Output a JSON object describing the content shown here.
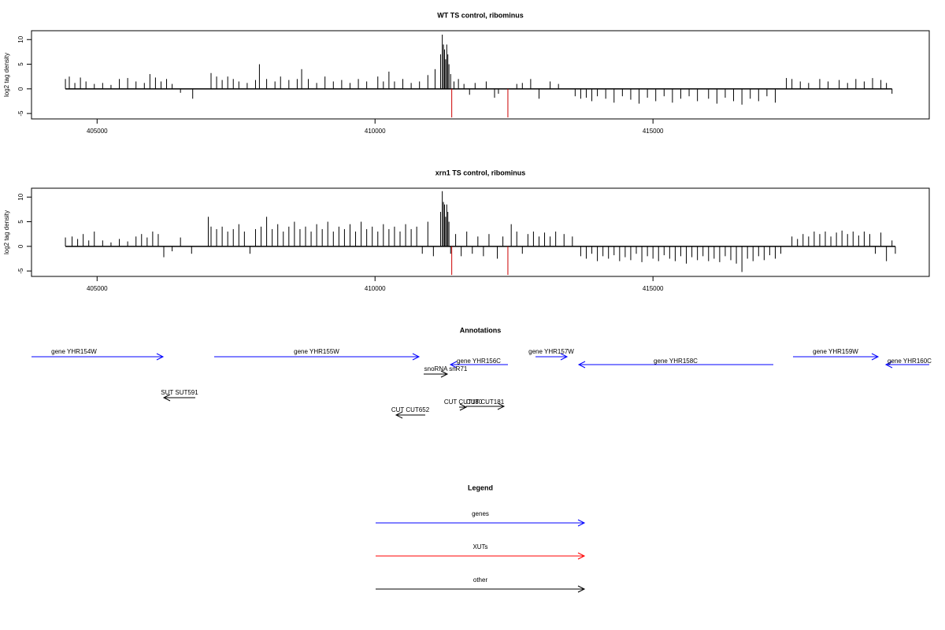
{
  "chart_data": [
    {
      "type": "bar",
      "title": "WT TS control, ribominus",
      "y_label": "log2 tag density",
      "xlim": [
        403820,
        419970
      ],
      "ylim": [
        -6.1,
        11.8
      ],
      "xticks": [
        405000,
        410000,
        415000
      ],
      "yticks": [
        -5,
        0,
        5,
        10
      ],
      "color": "#000000",
      "x": [
        404430,
        404500,
        404600,
        404700,
        404800,
        404950,
        405100,
        405250,
        405400,
        405550,
        405700,
        405850,
        405950,
        406050,
        406150,
        406250,
        406350,
        406500,
        406720,
        407050,
        407150,
        407250,
        407350,
        407450,
        407550,
        407700,
        407850,
        407920,
        408050,
        408200,
        408300,
        408450,
        408600,
        408680,
        408800,
        408950,
        409100,
        409250,
        409400,
        409550,
        409700,
        409850,
        410050,
        410150,
        410250,
        410350,
        410500,
        410650,
        410800,
        410950,
        411080,
        411180,
        411210,
        411230,
        411250,
        411270,
        411290,
        411310,
        411330,
        411360,
        411420,
        411500,
        411600,
        411700,
        411800,
        412000,
        412150,
        412220,
        412550,
        412650,
        412800,
        412950,
        413150,
        413300,
        413600,
        413700,
        413800,
        413900,
        414000,
        414150,
        414300,
        414450,
        414600,
        414750,
        414900,
        415050,
        415200,
        415350,
        415500,
        415650,
        415800,
        416000,
        416150,
        416300,
        416450,
        416600,
        416750,
        416900,
        417050,
        417200,
        417400,
        417500,
        417650,
        417800,
        418000,
        418150,
        418350,
        418500,
        418650,
        418800,
        418950,
        419100,
        419200,
        419300
      ],
      "values": [
        2,
        2.5,
        1.2,
        2.3,
        1.5,
        1,
        1.2,
        0.8,
        2,
        2.2,
        1.5,
        1.2,
        3,
        2.3,
        1.5,
        2,
        1,
        -0.8,
        -2,
        3.2,
        2.5,
        1.8,
        2.5,
        2,
        1.5,
        1.2,
        1.8,
        5,
        2,
        1.5,
        2.5,
        1.8,
        2,
        4,
        2,
        1.2,
        2.5,
        1.5,
        1.8,
        1.2,
        2,
        1.5,
        2.5,
        1.5,
        3.5,
        1.5,
        2,
        1.2,
        1.5,
        2.8,
        4,
        7,
        11,
        9,
        8,
        6,
        9,
        7,
        5,
        3,
        1.5,
        2,
        1,
        -1.2,
        1.2,
        1.5,
        -1.8,
        -1,
        1,
        1.2,
        2,
        -2,
        1.5,
        1,
        -1.5,
        -2,
        -1.8,
        -2.5,
        -1.5,
        -2,
        -2.8,
        -1.5,
        -2.2,
        -3,
        -1.8,
        -2.5,
        -1.5,
        -2.8,
        -2,
        -1.5,
        -2.5,
        -2,
        -3,
        -1.8,
        -2.5,
        -3.2,
        -2,
        -2.5,
        -1.5,
        -2.8,
        2.2,
        2,
        1.5,
        1.2,
        2,
        1.5,
        1.8,
        1.2,
        2,
        1.5,
        2.2,
        1.8,
        1.2,
        -1
      ],
      "highlight": {
        "color": "#cc0000",
        "x": [
          411380,
          412390
        ],
        "values": [
          -5.8,
          -5.8
        ]
      }
    },
    {
      "type": "bar",
      "title": "xrn1 TS control, ribominus",
      "y_label": "log2 tag density",
      "xlim": [
        403820,
        419970
      ],
      "ylim": [
        -6.1,
        11.8
      ],
      "xticks": [
        405000,
        410000,
        415000
      ],
      "yticks": [
        -5,
        0,
        5,
        10
      ],
      "color": "#000000",
      "x": [
        404430,
        404550,
        404650,
        404750,
        404850,
        404950,
        405100,
        405250,
        405400,
        405550,
        405700,
        405800,
        405900,
        406000,
        406100,
        406200,
        406350,
        406500,
        406700,
        407000,
        407050,
        407150,
        407250,
        407350,
        407450,
        407550,
        407650,
        407750,
        407850,
        407950,
        408050,
        408150,
        408250,
        408350,
        408450,
        408550,
        408650,
        408750,
        408850,
        408950,
        409050,
        409150,
        409250,
        409350,
        409450,
        409550,
        409650,
        409750,
        409850,
        409950,
        410050,
        410150,
        410250,
        410350,
        410450,
        410550,
        410650,
        410750,
        410850,
        410950,
        411050,
        411180,
        411210,
        411230,
        411250,
        411270,
        411290,
        411310,
        411330,
        411360,
        411450,
        411550,
        411650,
        411750,
        411850,
        411950,
        412050,
        412200,
        412300,
        412450,
        412550,
        412650,
        412750,
        412850,
        412950,
        413050,
        413150,
        413250,
        413400,
        413550,
        413700,
        413800,
        413900,
        414000,
        414100,
        414200,
        414300,
        414400,
        414500,
        414600,
        414700,
        414800,
        414900,
        415000,
        415100,
        415200,
        415300,
        415400,
        415500,
        415600,
        415700,
        415800,
        415900,
        416000,
        416100,
        416200,
        416300,
        416400,
        416500,
        416600,
        416700,
        416800,
        416900,
        417000,
        417100,
        417200,
        417300,
        417500,
        417600,
        417700,
        417800,
        417900,
        418000,
        418100,
        418200,
        418300,
        418400,
        418500,
        418600,
        418700,
        418800,
        418900,
        419000,
        419100,
        419200,
        419300,
        419360
      ],
      "values": [
        1.8,
        2,
        1.5,
        2.5,
        1.2,
        3,
        1.2,
        0.8,
        1.5,
        1,
        2,
        2.5,
        1.8,
        3,
        2.5,
        -2.2,
        -1,
        1.8,
        -1.5,
        6,
        4,
        3.5,
        4,
        3,
        3.5,
        4.5,
        3,
        -1.5,
        3.5,
        4,
        6,
        3.5,
        4.5,
        3,
        4,
        5,
        3.5,
        4,
        3,
        4.5,
        3.5,
        5,
        3,
        4,
        3.5,
        4.5,
        3,
        5,
        3.5,
        4,
        3,
        4.5,
        3.5,
        4,
        3,
        4.5,
        3.5,
        4,
        -1.5,
        5,
        -2,
        7,
        11.2,
        9,
        8.5,
        6,
        8.5,
        7,
        5,
        -1.5,
        2.5,
        -2,
        3,
        -1.5,
        2,
        -2,
        2.5,
        -2.5,
        2,
        4.5,
        3,
        -1.5,
        2.5,
        3,
        2,
        2.8,
        2,
        3,
        2.5,
        2,
        -2,
        -2.5,
        -1.5,
        -3,
        -2,
        -2.5,
        -1.8,
        -3,
        -2.2,
        -2.8,
        -1.5,
        -3.2,
        -2,
        -2.5,
        -3,
        -1.8,
        -2.5,
        -3,
        -2,
        -3.5,
        -2.2,
        -2.8,
        -2,
        -3,
        -2.5,
        -3.2,
        -2,
        -2.8,
        -3.5,
        -5.2,
        -2.5,
        -3,
        -2,
        -2.8,
        -1.8,
        -2.5,
        -1.5,
        2,
        1.5,
        2.5,
        2,
        3,
        2.5,
        3,
        2,
        2.8,
        3.2,
        2.5,
        3,
        2.2,
        3,
        2.5,
        -1.5,
        2.8,
        -3,
        1.2,
        -1.5
      ],
      "highlight": {
        "color": "#cc0000",
        "x": [
          411380,
          412390
        ],
        "values": [
          -5.8,
          -5.8
        ]
      }
    }
  ],
  "annotations": {
    "title": "Annotations",
    "items": [
      {
        "label": "gene YHR154W",
        "color": "#0000ff"
      },
      {
        "label": "gene YHR155W",
        "color": "#0000ff"
      },
      {
        "label": "gene YHR156C",
        "color": "#0000ff"
      },
      {
        "label": "gene YHR157W",
        "color": "#0000ff"
      },
      {
        "label": "gene YHR158C",
        "color": "#0000ff"
      },
      {
        "label": "gene YHR159W",
        "color": "#0000ff"
      },
      {
        "label": "gene YHR160C",
        "color": "#0000ff"
      },
      {
        "label": "snoRNA snR71",
        "color": "#000000"
      },
      {
        "label": "SUT SUT591",
        "color": "#000000"
      },
      {
        "label": "CUT CUT180",
        "color": "#000000"
      },
      {
        "label": "CUT CUT181",
        "color": "#000000"
      },
      {
        "label": "CUT CUT652",
        "color": "#000000"
      }
    ]
  },
  "legend": {
    "title": "Legend",
    "entries": [
      {
        "name": "genes",
        "color": "#0000ff"
      },
      {
        "name": "XUTs",
        "color": "#ff0000"
      },
      {
        "name": "other",
        "color": "#000000"
      }
    ]
  }
}
